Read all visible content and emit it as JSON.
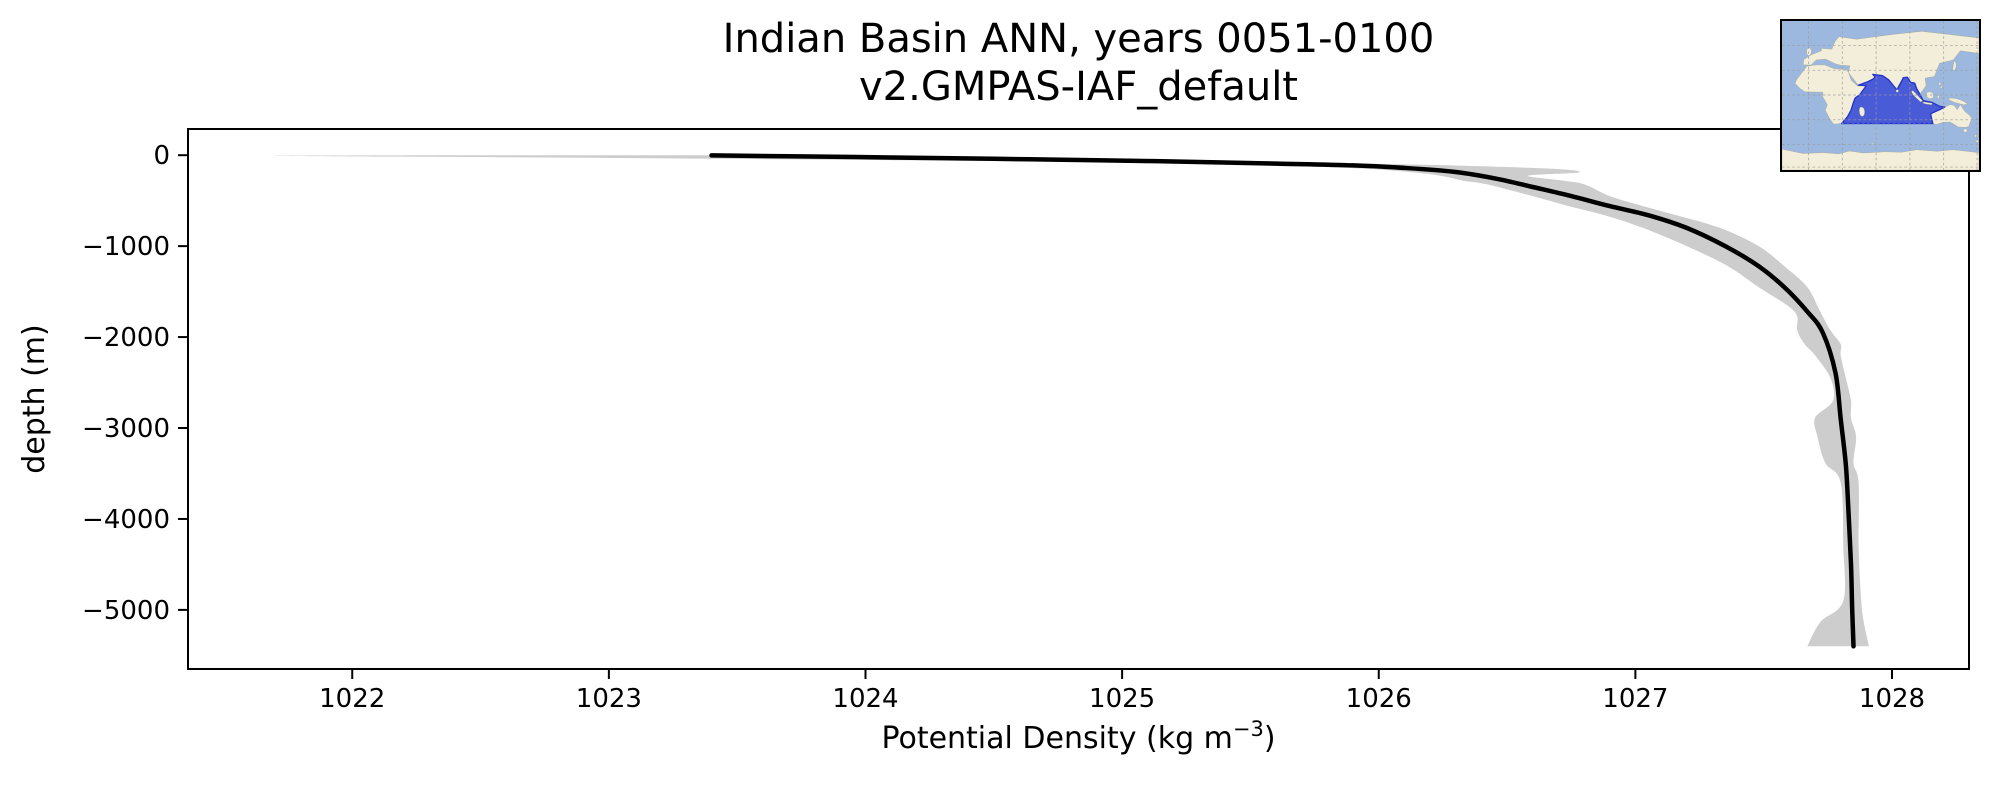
{
  "figure": {
    "title_line1": "Indian Basin ANN, years 0051-0100",
    "title_line2": "v2.GMPAS-IAF_default"
  },
  "chart_data": {
    "type": "line",
    "title_lines": [
      "Indian Basin ANN, years 0051-0100",
      "v2.GMPAS-IAF_default"
    ],
    "xlabel": {
      "pre": "Potential Density (kg m",
      "sup": "−3",
      "post": ")"
    },
    "ylabel": "depth (m)",
    "xlim": [
      1021.36,
      1028.3
    ],
    "ylim": [
      -5650,
      288
    ],
    "grid": false,
    "legend": "none",
    "x_ticks": {
      "values": [
        1022,
        1023,
        1024,
        1025,
        1026,
        1027,
        1028
      ],
      "labels": [
        "1022",
        "1023",
        "1024",
        "1025",
        "1026",
        "1027",
        "1028"
      ]
    },
    "y_ticks": {
      "values": [
        0,
        -1000,
        -2000,
        -3000,
        -4000,
        -5000
      ],
      "labels": [
        "0",
        "−1000",
        "−2000",
        "−3000",
        "−4000",
        "−5000"
      ]
    },
    "line_color": "#000000",
    "band_color": "#cdcdcd",
    "series": [
      {
        "name": "mean-potential-density-profile",
        "points_density_depth": [
          [
            1023.4,
            -2
          ],
          [
            1023.7,
            -12
          ],
          [
            1024.1,
            -25
          ],
          [
            1024.5,
            -40
          ],
          [
            1024.9,
            -55
          ],
          [
            1025.25,
            -72
          ],
          [
            1025.6,
            -92
          ],
          [
            1025.9,
            -112
          ],
          [
            1026.1,
            -140
          ],
          [
            1026.3,
            -185
          ],
          [
            1026.46,
            -260
          ],
          [
            1026.6,
            -350
          ],
          [
            1026.75,
            -450
          ],
          [
            1026.9,
            -560
          ],
          [
            1027.05,
            -660
          ],
          [
            1027.2,
            -800
          ],
          [
            1027.35,
            -1000
          ],
          [
            1027.48,
            -1220
          ],
          [
            1027.58,
            -1450
          ],
          [
            1027.67,
            -1720
          ],
          [
            1027.73,
            -1950
          ],
          [
            1027.78,
            -2400
          ],
          [
            1027.8,
            -2900
          ],
          [
            1027.82,
            -3400
          ],
          [
            1027.83,
            -3900
          ],
          [
            1027.84,
            -4500
          ],
          [
            1027.845,
            -5000
          ],
          [
            1027.85,
            -5400
          ]
        ]
      }
    ],
    "band": {
      "name": "spread-envelope",
      "points_depth_min_max": [
        [
          0,
          1022.3,
          1023.65
        ],
        [
          -6,
          1021.67,
          1023.75
        ],
        [
          -15,
          1022.1,
          1024.1
        ],
        [
          -25,
          1022.75,
          1024.55
        ],
        [
          -40,
          1023.45,
          1025.0
        ],
        [
          -55,
          1024.15,
          1025.35
        ],
        [
          -72,
          1024.75,
          1025.68
        ],
        [
          -92,
          1025.25,
          1025.95
        ],
        [
          -112,
          1025.6,
          1026.28
        ],
        [
          -150,
          1025.95,
          1026.68
        ],
        [
          -190,
          1026.14,
          1026.78
        ],
        [
          -225,
          1026.24,
          1026.58
        ],
        [
          -280,
          1026.33,
          1026.72
        ],
        [
          -320,
          1026.42,
          1026.8
        ],
        [
          -450,
          1026.6,
          1026.9
        ],
        [
          -560,
          1026.74,
          1027.03
        ],
        [
          -660,
          1026.88,
          1027.16
        ],
        [
          -800,
          1027.03,
          1027.33
        ],
        [
          -1000,
          1027.2,
          1027.48
        ],
        [
          -1220,
          1027.36,
          1027.58
        ],
        [
          -1450,
          1027.48,
          1027.67
        ],
        [
          -1720,
          1027.62,
          1027.72
        ],
        [
          -1925,
          1027.63,
          1027.76
        ],
        [
          -2080,
          1027.66,
          1027.8
        ],
        [
          -2200,
          1027.7,
          1027.8
        ],
        [
          -2450,
          1027.76,
          1027.82
        ],
        [
          -2700,
          1027.77,
          1027.84
        ],
        [
          -2890,
          1027.7,
          1027.84
        ],
        [
          -3100,
          1027.71,
          1027.86
        ],
        [
          -3385,
          1027.74,
          1027.85
        ],
        [
          -3600,
          1027.8,
          1027.87
        ],
        [
          -4300,
          1027.81,
          1027.87
        ],
        [
          -4900,
          1027.81,
          1027.88
        ],
        [
          -5135,
          1027.72,
          1027.89
        ],
        [
          -5400,
          1027.67,
          1027.91
        ]
      ]
    },
    "inset_map": {
      "name": "indian-basin-location-map",
      "highlighted_region": "Indian Ocean basin",
      "colors": {
        "ocean": "#9cb8de",
        "land": "#f2eed9",
        "highlight": "#4353d6",
        "highlight_edge": "#2331c8",
        "grid": "#9a9a9a"
      }
    }
  }
}
